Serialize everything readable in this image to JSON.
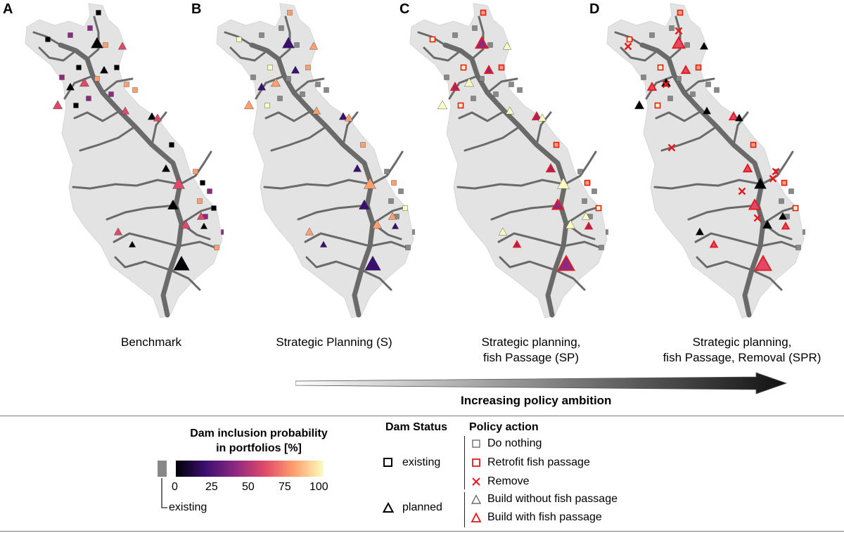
{
  "panels": [
    {
      "letter": "A",
      "caption": [
        "Benchmark"
      ],
      "variant": "benchmark"
    },
    {
      "letter": "B",
      "caption": [
        "Strategic Planning (S)"
      ],
      "variant": "strategic"
    },
    {
      "letter": "C",
      "caption": [
        "Strategic planning,",
        "fish Passage (SP)"
      ],
      "variant": "passage"
    },
    {
      "letter": "D",
      "caption": [
        "Strategic planning,",
        "fish Passage, Removal (SPR)"
      ],
      "variant": "removal"
    }
  ],
  "arrow_label": "Increasing policy ambition",
  "legend": {
    "colorbar_title": [
      "Dam inclusion probability",
      "in portfolios [%]"
    ],
    "ticks": [
      "0",
      "25",
      "50",
      "75",
      "100"
    ],
    "existing_label": "existing",
    "dam_status_title": "Dam Status",
    "status_existing": "existing",
    "status_planned": "planned",
    "policy_title": "Policy action",
    "actions": {
      "do_nothing": "Do nothing",
      "retrofit": "Retrofit fish passage",
      "remove": "Remove",
      "build_without": "Build without fish passage",
      "build_with": "Build with fish passage"
    }
  },
  "colors": {
    "basin": "#e3e3e3",
    "river": "#6a6a6a",
    "existing_grey": "#888888",
    "action_red": "#e41a1c",
    "ramp": [
      "#000004",
      "#3b0f70",
      "#8c2981",
      "#de4968",
      "#fe9f6d",
      "#fcfdbf"
    ]
  }
}
